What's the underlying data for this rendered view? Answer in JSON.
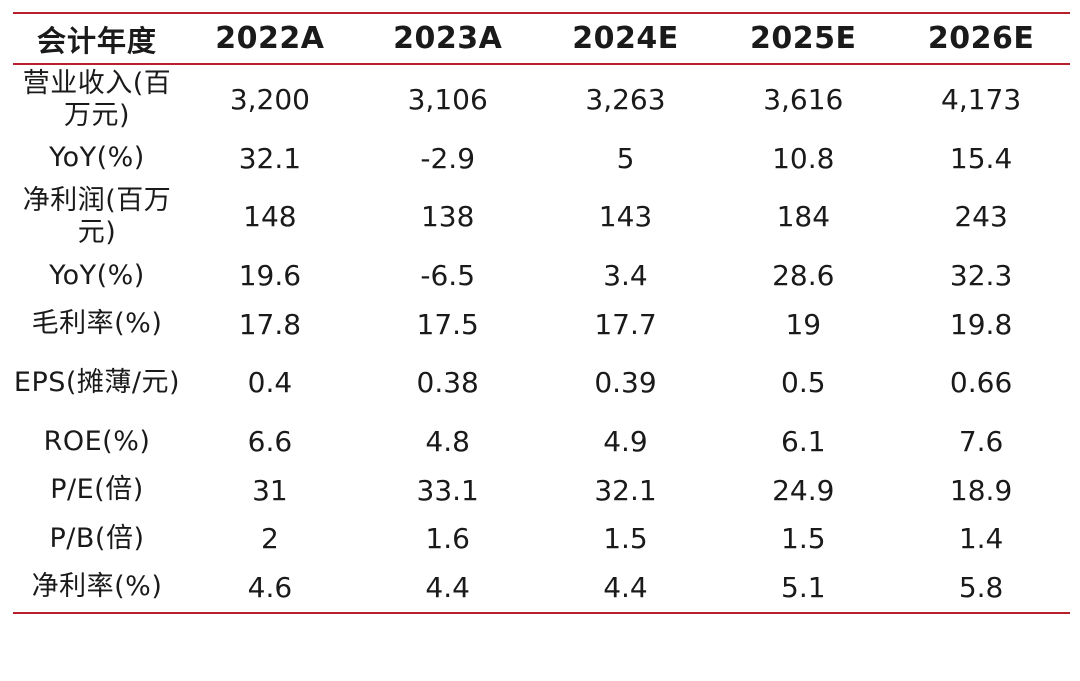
{
  "table": {
    "header": [
      "会计年度",
      "2022A",
      "2023A",
      "2024E",
      "2025E",
      "2026E"
    ],
    "rows": [
      {
        "label": "营业收入(百万元)",
        "values": [
          "3,200",
          "3,106",
          "3,263",
          "3,616",
          "4,173"
        ]
      },
      {
        "label": "YoY(%)",
        "values": [
          "32.1",
          "-2.9",
          "5",
          "10.8",
          "15.4"
        ]
      },
      {
        "label": "净利润(百万元)",
        "values": [
          "148",
          "138",
          "143",
          "184",
          "243"
        ]
      },
      {
        "label": "YoY(%)",
        "values": [
          "19.6",
          "-6.5",
          "3.4",
          "28.6",
          "32.3"
        ]
      },
      {
        "label": "毛利率(%)",
        "values": [
          "17.8",
          "17.5",
          "17.7",
          "19",
          "19.8"
        ]
      },
      {
        "label": "EPS(摊薄/元)",
        "values": [
          "0.4",
          "0.38",
          "0.39",
          "0.5",
          "0.66"
        ]
      },
      {
        "label": "ROE(%)",
        "values": [
          "6.6",
          "4.8",
          "4.9",
          "6.1",
          "7.6"
        ]
      },
      {
        "label": "P/E(倍)",
        "values": [
          "31",
          "33.1",
          "32.1",
          "24.9",
          "18.9"
        ]
      },
      {
        "label": "P/B(倍)",
        "values": [
          "2",
          "1.6",
          "1.5",
          "1.5",
          "1.4"
        ]
      },
      {
        "label": "净利率(%)",
        "values": [
          "4.6",
          "4.4",
          "4.4",
          "5.1",
          "5.8"
        ]
      }
    ]
  },
  "colors": {
    "rule": "#b9202e",
    "text": "#1a1a1a"
  }
}
